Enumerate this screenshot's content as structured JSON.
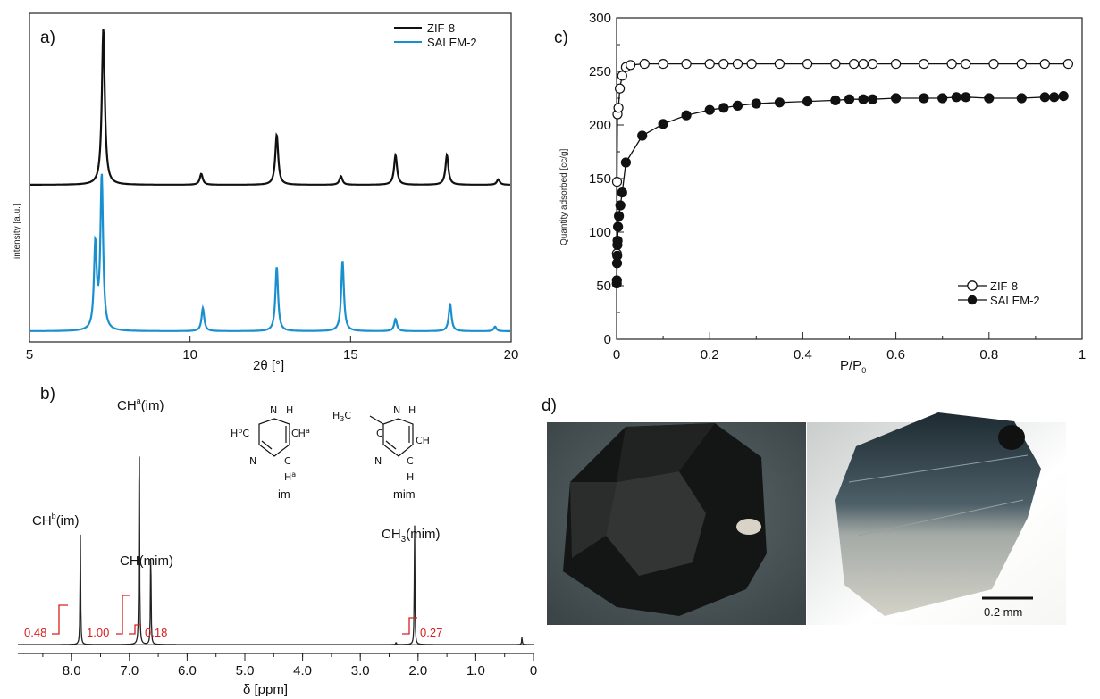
{
  "panels": {
    "a": "a)",
    "b": "b)",
    "c": "c)",
    "d": "d)"
  },
  "colors": {
    "zif8": "#111111",
    "salem2": "#1a8fd0",
    "integral": "#d62020"
  },
  "chart_data": [
    {
      "id": "a",
      "type": "line",
      "xlabel": "2θ [°]",
      "ylabel": "intensity [a.u.]",
      "xlim": [
        5,
        20
      ],
      "xticks": [
        "5",
        "10",
        "15",
        "20"
      ],
      "grid": false,
      "legend_position": "top-right",
      "series": [
        {
          "name": "ZIF-8",
          "color": "#111111",
          "peaks": [
            [
              7.3,
              1.0
            ],
            [
              10.35,
              0.07
            ],
            [
              12.7,
              0.32
            ],
            [
              14.7,
              0.055
            ],
            [
              16.4,
              0.19
            ],
            [
              18.0,
              0.19
            ],
            [
              19.6,
              0.035
            ]
          ]
        },
        {
          "name": "SALEM-2",
          "color": "#1a8fd0",
          "peaks": [
            [
              7.05,
              0.55
            ],
            [
              7.25,
              1.0
            ],
            [
              10.4,
              0.15
            ],
            [
              12.7,
              0.42
            ],
            [
              14.75,
              0.46
            ],
            [
              16.4,
              0.08
            ],
            [
              18.1,
              0.18
            ],
            [
              19.5,
              0.03
            ]
          ]
        }
      ]
    },
    {
      "id": "b",
      "type": "line",
      "xlabel": "δ [ppm]",
      "xlim": [
        8.5,
        0
      ],
      "xticks": [
        "8.0",
        "7.0",
        "6.0",
        "5.0",
        "4.0",
        "3.0",
        "2.0",
        "1.0",
        "0"
      ],
      "peaks": [
        [
          7.85,
          0.48
        ],
        [
          6.83,
          1.0
        ],
        [
          6.63,
          0.44
        ],
        [
          2.38,
          0.01
        ],
        [
          2.06,
          0.5
        ],
        [
          0.2,
          0.03
        ]
      ],
      "peak_labels": [
        "CHb(im)",
        "CHa(im)",
        "CH(mim)",
        "CH3(mim)"
      ],
      "integrals": [
        "0.48",
        "1.00",
        "0.18",
        "0.27"
      ],
      "molecules": [
        "im",
        "mim"
      ],
      "atom_labels": {
        "nh": "N",
        "h": "H",
        "n": "N",
        "hb_c": "HbC",
        "ch_a1": "CHa",
        "c": "C",
        "ha": "Ha",
        "h3c": "H3C",
        "ch": "CH",
        "c_h": "C",
        "h_bottom": "H"
      }
    },
    {
      "id": "c",
      "type": "scatter",
      "xlabel": "P/P₀",
      "ylabel": "Quantity adsorbed [cc/g]",
      "xlim": [
        0,
        1
      ],
      "ylim": [
        0,
        300
      ],
      "xticks": [
        "0",
        "0.2",
        "0.4",
        "0.6",
        "0.8",
        "1"
      ],
      "yticks": [
        "0",
        "50",
        "100",
        "150",
        "200",
        "250",
        "300"
      ],
      "grid": false,
      "legend_position": "bottom-right",
      "series": [
        {
          "name": "ZIF-8",
          "marker": "open-circle",
          "x": [
            0.0005,
            0.001,
            0.002,
            0.004,
            0.007,
            0.012,
            0.02,
            0.03,
            0.06,
            0.1,
            0.15,
            0.2,
            0.23,
            0.26,
            0.29,
            0.35,
            0.41,
            0.47,
            0.51,
            0.53,
            0.55,
            0.6,
            0.66,
            0.72,
            0.75,
            0.81,
            0.87,
            0.92,
            0.97
          ],
          "y": [
            80,
            147,
            210,
            216,
            234,
            246,
            254,
            256,
            257,
            257,
            257,
            257,
            257,
            257,
            257,
            257,
            257,
            257,
            257,
            257,
            257,
            257,
            257,
            257,
            257,
            257,
            257,
            257,
            257
          ]
        },
        {
          "name": "SALEM-2",
          "marker": "filled-circle",
          "x": [
            0.0003,
            0.0006,
            0.0009,
            0.0013,
            0.0017,
            0.0022,
            0.003,
            0.005,
            0.008,
            0.012,
            0.02,
            0.055,
            0.1,
            0.15,
            0.2,
            0.23,
            0.26,
            0.3,
            0.35,
            0.41,
            0.47,
            0.5,
            0.53,
            0.55,
            0.6,
            0.66,
            0.7,
            0.73,
            0.75,
            0.8,
            0.87,
            0.92,
            0.94,
            0.96
          ],
          "y": [
            52,
            55,
            71,
            78,
            88,
            92,
            105,
            115,
            125,
            137,
            165,
            190,
            201,
            209,
            214,
            216,
            218,
            220,
            221,
            222,
            223,
            224,
            224,
            224,
            225,
            225,
            225,
            226,
            226,
            225,
            225,
            226,
            226,
            227
          ]
        }
      ]
    }
  ],
  "panel_d": {
    "scalebar_label": "0.2 mm"
  }
}
